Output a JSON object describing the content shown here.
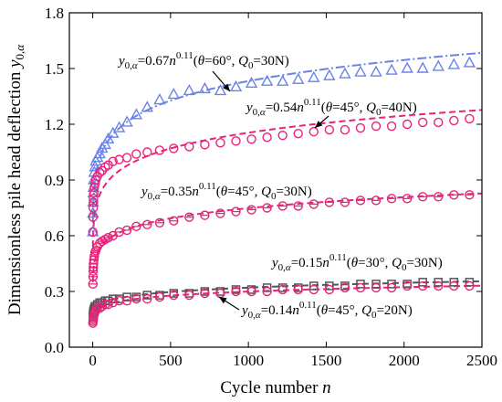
{
  "chart_data": {
    "type": "scatter",
    "xlabel": "Cycle number n",
    "ylabel": "Dimensionless pile head deflection y0,α",
    "xlim": [
      -150,
      2500
    ],
    "ylim": [
      0,
      1.8
    ],
    "xticks": [
      0,
      500,
      1000,
      1500,
      2000,
      2500
    ],
    "yticks": [
      0.0,
      0.3,
      0.6,
      0.9,
      1.2,
      1.5,
      1.8
    ],
    "grid": false,
    "series": [
      {
        "marker": "triangle",
        "color": "#6b82e8",
        "fit": {
          "a": 0.67,
          "b": 0.11,
          "dash": "dashdot"
        },
        "points": [
          [
            1,
            0.62
          ],
          [
            2,
            0.72
          ],
          [
            3,
            0.78
          ],
          [
            4,
            0.83
          ],
          [
            5,
            0.86
          ],
          [
            7,
            0.9
          ],
          [
            10,
            0.94
          ],
          [
            15,
            0.97
          ],
          [
            20,
            1.0
          ],
          [
            30,
            1.02
          ],
          [
            45,
            1.04
          ],
          [
            60,
            1.07
          ],
          [
            80,
            1.09
          ],
          [
            100,
            1.12
          ],
          [
            130,
            1.15
          ],
          [
            170,
            1.18
          ],
          [
            220,
            1.21
          ],
          [
            280,
            1.25
          ],
          [
            350,
            1.29
          ],
          [
            430,
            1.33
          ],
          [
            520,
            1.36
          ],
          [
            620,
            1.38
          ],
          [
            720,
            1.39
          ],
          [
            820,
            1.38
          ],
          [
            920,
            1.4
          ],
          [
            1020,
            1.42
          ],
          [
            1120,
            1.43
          ],
          [
            1220,
            1.43
          ],
          [
            1320,
            1.44
          ],
          [
            1420,
            1.45
          ],
          [
            1520,
            1.46
          ],
          [
            1620,
            1.47
          ],
          [
            1720,
            1.48
          ],
          [
            1820,
            1.48
          ],
          [
            1920,
            1.49
          ],
          [
            2020,
            1.5
          ],
          [
            2120,
            1.5
          ],
          [
            2220,
            1.51
          ],
          [
            2320,
            1.52
          ],
          [
            2420,
            1.53
          ]
        ]
      },
      {
        "marker": "circle",
        "color": "#e8237a",
        "fit": {
          "a": 0.54,
          "b": 0.11,
          "dash": "dash"
        },
        "points": [
          [
            1,
            0.62
          ],
          [
            2,
            0.7
          ],
          [
            3,
            0.75
          ],
          [
            4,
            0.78
          ],
          [
            5,
            0.8
          ],
          [
            7,
            0.83
          ],
          [
            10,
            0.86
          ],
          [
            15,
            0.88
          ],
          [
            20,
            0.9
          ],
          [
            30,
            0.92
          ],
          [
            45,
            0.94
          ],
          [
            60,
            0.95
          ],
          [
            80,
            0.97
          ],
          [
            100,
            0.98
          ],
          [
            130,
            1.0
          ],
          [
            170,
            1.01
          ],
          [
            220,
            1.02
          ],
          [
            280,
            1.04
          ],
          [
            350,
            1.05
          ],
          [
            430,
            1.06
          ],
          [
            520,
            1.07
          ],
          [
            620,
            1.08
          ],
          [
            720,
            1.09
          ],
          [
            820,
            1.1
          ],
          [
            920,
            1.11
          ],
          [
            1020,
            1.12
          ],
          [
            1120,
            1.13
          ],
          [
            1220,
            1.14
          ],
          [
            1320,
            1.15
          ],
          [
            1420,
            1.16
          ],
          [
            1520,
            1.17
          ],
          [
            1620,
            1.17
          ],
          [
            1720,
            1.18
          ],
          [
            1820,
            1.19
          ],
          [
            1920,
            1.19
          ],
          [
            2020,
            1.2
          ],
          [
            2120,
            1.21
          ],
          [
            2220,
            1.21
          ],
          [
            2320,
            1.22
          ],
          [
            2420,
            1.23
          ]
        ]
      },
      {
        "marker": "circle-bar",
        "color": "#e8237a",
        "fit": {
          "a": 0.35,
          "b": 0.11,
          "dash": "dash"
        },
        "points": [
          [
            1,
            0.34
          ],
          [
            2,
            0.38
          ],
          [
            3,
            0.41
          ],
          [
            4,
            0.43
          ],
          [
            5,
            0.45
          ],
          [
            7,
            0.47
          ],
          [
            10,
            0.49
          ],
          [
            15,
            0.51
          ],
          [
            20,
            0.52
          ],
          [
            30,
            0.54
          ],
          [
            45,
            0.56
          ],
          [
            60,
            0.57
          ],
          [
            80,
            0.58
          ],
          [
            100,
            0.59
          ],
          [
            130,
            0.6
          ],
          [
            170,
            0.62
          ],
          [
            220,
            0.63
          ],
          [
            280,
            0.65
          ],
          [
            350,
            0.66
          ],
          [
            430,
            0.67
          ],
          [
            520,
            0.68
          ],
          [
            620,
            0.7
          ],
          [
            720,
            0.71
          ],
          [
            820,
            0.72
          ],
          [
            920,
            0.73
          ],
          [
            1020,
            0.74
          ],
          [
            1120,
            0.75
          ],
          [
            1220,
            0.76
          ],
          [
            1320,
            0.76
          ],
          [
            1420,
            0.77
          ],
          [
            1520,
            0.78
          ],
          [
            1620,
            0.78
          ],
          [
            1720,
            0.79
          ],
          [
            1820,
            0.79
          ],
          [
            1920,
            0.8
          ],
          [
            2020,
            0.8
          ],
          [
            2120,
            0.81
          ],
          [
            2220,
            0.81
          ],
          [
            2320,
            0.82
          ],
          [
            2420,
            0.82
          ]
        ]
      },
      {
        "marker": "square",
        "color": "#555555",
        "fit": {
          "a": 0.15,
          "b": 0.11,
          "dash": "dash"
        },
        "points": [
          [
            1,
            0.16
          ],
          [
            2,
            0.17
          ],
          [
            3,
            0.18
          ],
          [
            4,
            0.19
          ],
          [
            5,
            0.19
          ],
          [
            7,
            0.2
          ],
          [
            10,
            0.21
          ],
          [
            15,
            0.22
          ],
          [
            20,
            0.22
          ],
          [
            30,
            0.23
          ],
          [
            45,
            0.24
          ],
          [
            60,
            0.24
          ],
          [
            80,
            0.25
          ],
          [
            100,
            0.25
          ],
          [
            130,
            0.26
          ],
          [
            170,
            0.26
          ],
          [
            220,
            0.27
          ],
          [
            280,
            0.27
          ],
          [
            350,
            0.28
          ],
          [
            430,
            0.28
          ],
          [
            520,
            0.29
          ],
          [
            620,
            0.29
          ],
          [
            720,
            0.3
          ],
          [
            820,
            0.3
          ],
          [
            920,
            0.31
          ],
          [
            1020,
            0.31
          ],
          [
            1120,
            0.32
          ],
          [
            1220,
            0.32
          ],
          [
            1320,
            0.32
          ],
          [
            1420,
            0.33
          ],
          [
            1520,
            0.33
          ],
          [
            1620,
            0.33
          ],
          [
            1720,
            0.34
          ],
          [
            1820,
            0.34
          ],
          [
            1920,
            0.34
          ],
          [
            2020,
            0.34
          ],
          [
            2120,
            0.35
          ],
          [
            2220,
            0.35
          ],
          [
            2320,
            0.35
          ],
          [
            2420,
            0.35
          ]
        ]
      },
      {
        "marker": "circle",
        "color": "#e8237a",
        "fit": {
          "a": 0.14,
          "b": 0.11,
          "dash": "dash"
        },
        "points": [
          [
            1,
            0.13
          ],
          [
            2,
            0.14
          ],
          [
            3,
            0.15
          ],
          [
            4,
            0.16
          ],
          [
            5,
            0.16
          ],
          [
            7,
            0.17
          ],
          [
            10,
            0.18
          ],
          [
            15,
            0.19
          ],
          [
            20,
            0.2
          ],
          [
            30,
            0.21
          ],
          [
            45,
            0.21
          ],
          [
            60,
            0.22
          ],
          [
            80,
            0.23
          ],
          [
            100,
            0.23
          ],
          [
            130,
            0.24
          ],
          [
            170,
            0.25
          ],
          [
            220,
            0.25
          ],
          [
            280,
            0.26
          ],
          [
            350,
            0.26
          ],
          [
            430,
            0.27
          ],
          [
            520,
            0.28
          ],
          [
            620,
            0.28
          ],
          [
            720,
            0.29
          ],
          [
            820,
            0.29
          ],
          [
            920,
            0.3
          ],
          [
            1020,
            0.3
          ],
          [
            1120,
            0.3
          ],
          [
            1220,
            0.31
          ],
          [
            1320,
            0.31
          ],
          [
            1420,
            0.31
          ],
          [
            1520,
            0.31
          ],
          [
            1620,
            0.32
          ],
          [
            1720,
            0.32
          ],
          [
            1820,
            0.32
          ],
          [
            1920,
            0.32
          ],
          [
            2020,
            0.33
          ],
          [
            2120,
            0.33
          ],
          [
            2220,
            0.33
          ],
          [
            2320,
            0.33
          ],
          [
            2420,
            0.33
          ]
        ]
      }
    ],
    "annotations": [
      {
        "coef": "0.67",
        "theta": "60°",
        "Q0": "30N"
      },
      {
        "coef": "0.54",
        "theta": "45°",
        "Q0": "40N"
      },
      {
        "coef": "0.35",
        "theta": "45°",
        "Q0": "30N"
      },
      {
        "coef": "0.15",
        "theta": "30°",
        "Q0": "30N"
      },
      {
        "coef": "0.14",
        "theta": "45°",
        "Q0": "20N"
      }
    ]
  }
}
